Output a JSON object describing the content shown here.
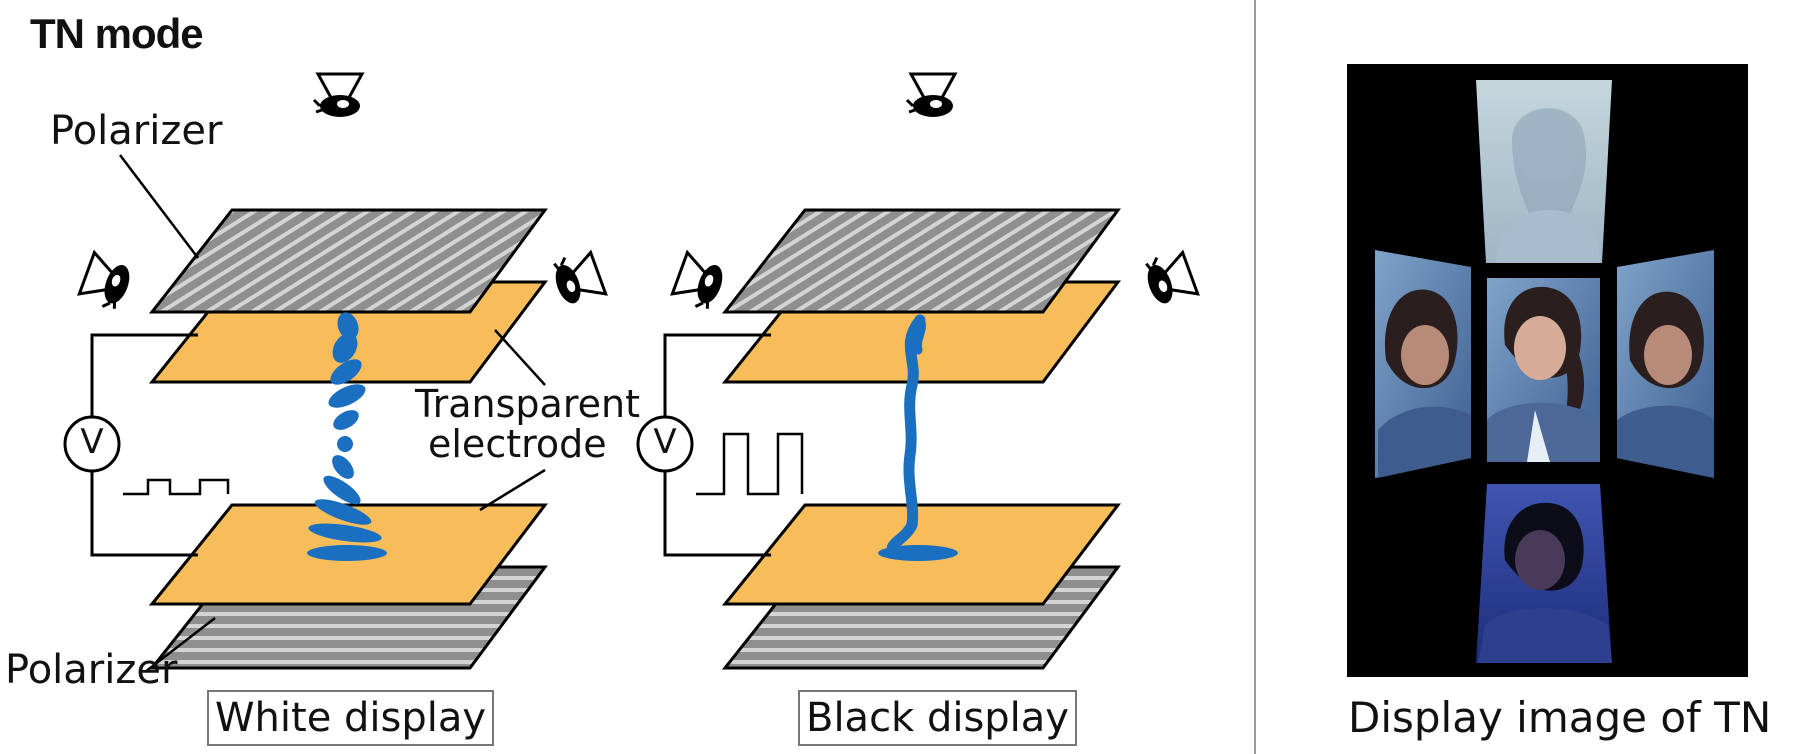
{
  "title": "TN mode",
  "labels": {
    "polarizer_top": "Polarizer",
    "polarizer_bottom": "Polarizer",
    "transparent": "Transparent",
    "electrode": "electrode",
    "voltage": "V",
    "white_display": "White display",
    "black_display": "Black display",
    "display_image_caption": "Display image of  TN"
  },
  "colors": {
    "polarizer_fill": "#9a9a9a",
    "electrode_fill": "#f6bd5a",
    "liquid_crystal": "#1a6fc0",
    "photo_background": "#000000",
    "divider": "#9a9a9a"
  },
  "icons": [
    "eye-icon"
  ]
}
